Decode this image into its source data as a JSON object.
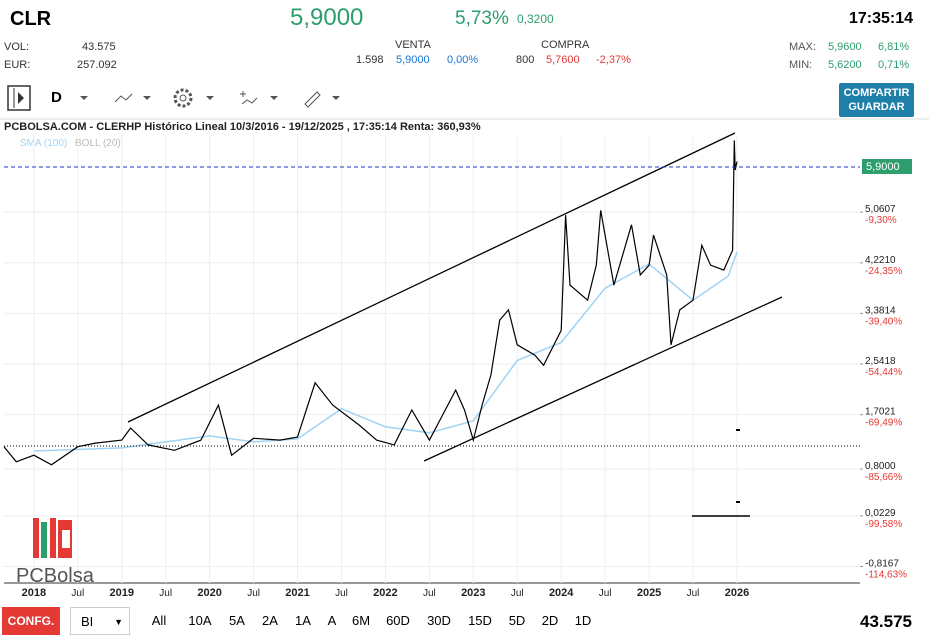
{
  "header": {
    "ticker": "CLR",
    "price": "5,9000",
    "change_pct": "5,73%",
    "change": "0,3200",
    "time": "17:35:14"
  },
  "stats": {
    "vol_label": "VOL:",
    "vol": "43.575",
    "eur_label": "EUR:",
    "eur": "257.092"
  },
  "venta": {
    "label": "VENTA",
    "qty": "1.598",
    "price": "5,9000",
    "pct": "0,00%"
  },
  "compra": {
    "label": "COMPRA",
    "qty": "800",
    "price": "5,7600",
    "pct": "-2,37%"
  },
  "range": {
    "max_label": "MAX:",
    "max": "5,9600",
    "max_pct": "6,81%",
    "min_label": "MIN:",
    "min": "5,6200",
    "min_pct": "0,71%"
  },
  "toolbar": {
    "period": "D",
    "share_line1": "COMPARTIR",
    "share_line2": "GUARDAR"
  },
  "footer": {
    "config": "CONFG.",
    "mode": "BI",
    "ranges": [
      "All",
      "10A",
      "5A",
      "2A",
      "1A",
      "A",
      "6M",
      "60D",
      "30D",
      "15D",
      "5D",
      "2D",
      "1D"
    ],
    "volume": "43.575"
  },
  "logo": "PCBolsa",
  "chart_data": {
    "type": "line",
    "title": "PCBOLSA.COM - CLERHP Histórico Lineal 10/3/2016 - 19/12/2025 , 17:35:14 Renta: 360,93%",
    "bollinger_label": "BOLL (20)",
    "xlim": [
      2017.66,
      2027.4
    ],
    "xticks": [
      2018,
      {
        "value": 2018.5,
        "label": "Jul"
      },
      2019,
      {
        "value": 2019.5,
        "label": "Jul"
      },
      2020,
      {
        "value": 2020.5,
        "label": "Jul"
      },
      2021,
      {
        "value": 2021.5,
        "label": "Jul"
      },
      2022,
      {
        "value": 2022.5,
        "label": "Jul"
      },
      2023,
      {
        "value": 2023.5,
        "label": "Jul"
      },
      2024,
      {
        "value": 2024.5,
        "label": "Jul"
      },
      2025,
      {
        "value": 2025.5,
        "label": "Jul"
      },
      2026
    ],
    "ylim": [
      -1.09,
      6.34
    ],
    "yticks": [
      {
        "value": 5.0607,
        "label": "5,0607"
      },
      {
        "value": 4.221,
        "label": "4,2210"
      },
      {
        "value": 3.3814,
        "label": "3,3814"
      },
      {
        "value": 2.5418,
        "label": "2,5418"
      },
      {
        "value": 1.7021,
        "label": "1,7021"
      },
      {
        "value": 0.8,
        "label": "0,8000"
      },
      {
        "value": 0.0229,
        "label": "0,0229"
      },
      {
        "value": -0.8167,
        "label": "-0,8167"
      }
    ],
    "y2lim": [
      -119.54,
      13.65
    ],
    "y2ticks": [
      {
        "value": -9.3,
        "label": "-9,30%"
      },
      {
        "value": -24.35,
        "label": "-24,35%"
      },
      {
        "value": -39.4,
        "label": "-39,40%"
      },
      {
        "value": -54.44,
        "label": "-54,44%"
      },
      {
        "value": -69.49,
        "label": "-69,49%"
      },
      {
        "value": -85.66,
        "label": "-85,66%"
      },
      {
        "value": -99.58,
        "label": "-99,58%"
      },
      {
        "value": -114.63,
        "label": "-114,63%"
      }
    ],
    "grid": true,
    "series": [
      {
        "color": "#000000",
        "x": [
          2017.66,
          2017.8,
          2018.0,
          2018.2,
          2018.5,
          2018.7,
          2019.0,
          2019.1,
          2019.3,
          2019.6,
          2019.9,
          2020.1,
          2020.25,
          2020.5,
          2020.8,
          2021.0,
          2021.2,
          2021.4,
          2021.7,
          2021.9,
          2022.1,
          2022.3,
          2022.5,
          2022.8,
          2022.9,
          2023.0,
          2023.1,
          2023.2,
          2023.3,
          2023.4,
          2023.5,
          2023.7,
          2023.8,
          2024.0,
          2024.05,
          2024.1,
          2024.3,
          2024.4,
          2024.45,
          2024.6,
          2024.8,
          2024.9,
          2025.0,
          2025.05,
          2025.2,
          2025.25,
          2025.35,
          2025.5,
          2025.6,
          2025.7,
          2025.85,
          2025.95,
          2025.97,
          2025.98,
          2026.0
        ],
        "values": [
          1.17,
          0.92,
          1.03,
          0.87,
          1.17,
          1.23,
          1.28,
          1.48,
          1.2,
          1.11,
          1.28,
          1.86,
          1.03,
          1.31,
          1.28,
          1.33,
          2.23,
          1.86,
          1.53,
          1.28,
          1.2,
          1.78,
          1.28,
          2.11,
          1.78,
          1.28,
          1.86,
          2.36,
          3.27,
          3.44,
          2.86,
          2.69,
          2.52,
          3.1,
          5.01,
          3.85,
          3.6,
          4.18,
          5.09,
          3.85,
          4.85,
          4.02,
          4.18,
          4.68,
          4.02,
          2.86,
          3.44,
          3.6,
          4.51,
          4.18,
          4.1,
          4.43,
          6.25,
          5.76,
          5.9
        ]
      },
      {
        "name": "SMA (100)",
        "color": "#9fd3f5",
        "x": [
          2018.0,
          2019.0,
          2019.5,
          2020.0,
          2020.5,
          2021.0,
          2021.5,
          2022.0,
          2022.5,
          2023.0,
          2023.5,
          2024.0,
          2024.5,
          2025.0,
          2025.5,
          2025.9,
          2026.0
        ],
        "values": [
          1.1,
          1.15,
          1.25,
          1.35,
          1.25,
          1.3,
          1.8,
          1.5,
          1.4,
          1.6,
          2.6,
          2.9,
          3.8,
          4.2,
          3.6,
          4.0,
          4.4
        ]
      }
    ]
  }
}
